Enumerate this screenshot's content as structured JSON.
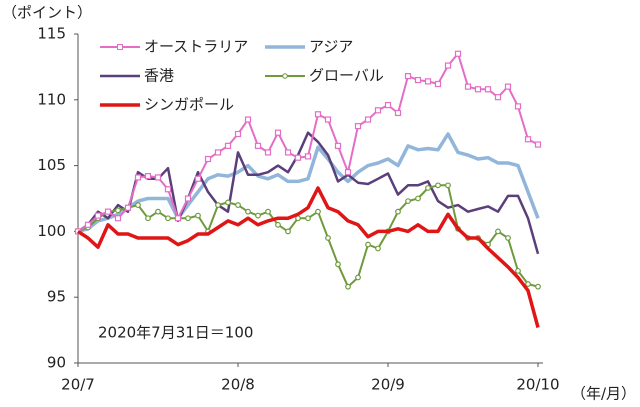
{
  "chart_data": {
    "type": "line",
    "y_label": "（ポイント）",
    "x_label": "（年/月）",
    "annotation": "2020年7月31日＝100",
    "categories": [
      "20/7",
      null,
      null,
      null,
      null,
      null,
      null,
      null,
      null,
      null,
      null,
      null,
      null,
      null,
      null,
      null,
      "20/8",
      null,
      null,
      null,
      null,
      null,
      null,
      null,
      null,
      null,
      null,
      null,
      null,
      null,
      null,
      "20/9",
      null,
      null,
      null,
      null,
      null,
      null,
      null,
      null,
      null,
      null,
      null,
      null,
      null,
      null,
      "20/10"
    ],
    "ylim": [
      90,
      115
    ],
    "yticks": [
      90,
      95,
      100,
      105,
      110,
      115
    ],
    "grid": false,
    "series": [
      {
        "name": "オーストラリア",
        "color": "#e46dc6",
        "marker": "square",
        "line_width": 2,
        "values": [
          100,
          100.5,
          101.2,
          101.5,
          101,
          101.8,
          104.1,
          104.2,
          104.1,
          103.2,
          101,
          102.5,
          104,
          105.5,
          106,
          106.5,
          107.4,
          108.5,
          106.5,
          106,
          107.5,
          106,
          105.6,
          105.7,
          108.9,
          108.5,
          106.5,
          104.5,
          108,
          108.5,
          109.2,
          109.6,
          109,
          111.8,
          111.5,
          111.4,
          111.2,
          112.6,
          113.5,
          111,
          110.8,
          110.8,
          110.2,
          111,
          109.5,
          107,
          106.6
        ]
      },
      {
        "name": "アジア",
        "color": "#92b5da",
        "marker": null,
        "line_width": 3.5,
        "values": [
          100,
          100.2,
          100.8,
          101,
          101.3,
          101.8,
          102.3,
          102.5,
          102.5,
          102.5,
          101,
          102,
          103,
          104,
          104.3,
          104.2,
          104.5,
          105,
          104.2,
          104,
          104.3,
          103.8,
          103.8,
          104,
          106.4,
          105.5,
          104.5,
          103.8,
          104.5,
          105,
          105.2,
          105.5,
          105,
          106.5,
          106.2,
          106.3,
          106.2,
          107.4,
          106,
          105.8,
          105.5,
          105.6,
          105.2,
          105.2,
          105,
          103,
          101
        ]
      },
      {
        "name": "香港",
        "color": "#5b3f7a",
        "marker": null,
        "line_width": 2.5,
        "values": [
          100,
          100.5,
          101.5,
          101,
          102,
          101.5,
          104.5,
          104,
          104,
          104.8,
          100.8,
          102.5,
          104.5,
          103,
          102,
          101.5,
          106,
          104.3,
          104.3,
          104.5,
          105,
          104.5,
          105.8,
          107.5,
          106.8,
          105.8,
          103.8,
          104.3,
          103.7,
          103.6,
          104,
          104.4,
          102.8,
          103.5,
          103.5,
          103.8,
          102.3,
          101.8,
          102,
          101.5,
          101.7,
          101.9,
          101.5,
          102.7,
          102.7,
          101,
          98.3
        ]
      },
      {
        "name": "グローバル",
        "color": "#6e9a3c",
        "marker": "circle",
        "line_width": 2,
        "values": [
          100,
          100.3,
          101,
          101.5,
          101.6,
          101.8,
          102,
          101,
          101.5,
          101,
          101,
          101,
          101.2,
          100,
          102,
          102.2,
          102,
          101.5,
          101.2,
          101.5,
          100.5,
          100,
          101,
          101,
          101.5,
          99.5,
          97.5,
          95.8,
          96.5,
          99,
          98.7,
          100,
          101.5,
          102.3,
          102.5,
          103.3,
          103.5,
          103.5,
          100.2,
          99.5,
          99.5,
          99,
          100,
          99.5,
          97,
          96,
          95.8
        ]
      },
      {
        "name": "シンガポール",
        "color": "#e01515",
        "marker": null,
        "line_width": 3.5,
        "values": [
          100,
          99.5,
          98.8,
          100.5,
          99.8,
          99.8,
          99.5,
          99.5,
          99.5,
          99.5,
          99,
          99.3,
          99.8,
          99.8,
          100.3,
          100.8,
          100.5,
          101,
          100.5,
          100.8,
          101,
          101,
          101.3,
          101.8,
          103.3,
          101.8,
          101.5,
          100.8,
          100.5,
          99.6,
          100,
          100,
          100.2,
          100,
          100.5,
          100,
          100,
          101.3,
          100.2,
          99.5,
          99.5,
          98.7,
          98,
          97.3,
          96.5,
          95.5,
          92.7
        ]
      }
    ]
  }
}
